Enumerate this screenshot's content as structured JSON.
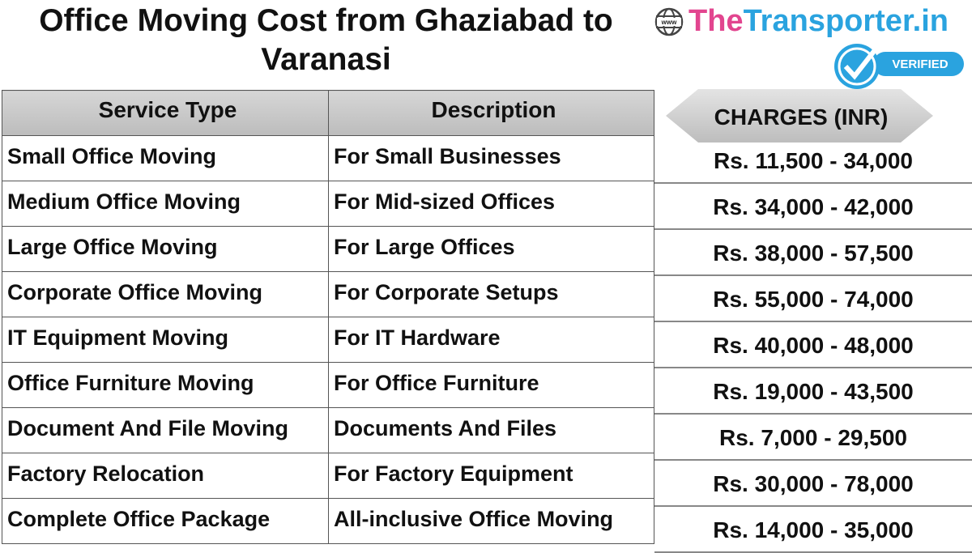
{
  "title": "Office Moving Cost from Ghaziabad to Varanasi",
  "logo": {
    "globe": "www",
    "brand_prefix": "The",
    "brand_suffix": "Transporter.in",
    "badge": "VERIFIED"
  },
  "table": {
    "headers": [
      "Service Type",
      "Description"
    ],
    "rows": [
      [
        "Small Office Moving",
        "For Small Businesses"
      ],
      [
        "Medium Office Moving",
        "For Mid-sized Offices"
      ],
      [
        "Large Office Moving",
        "For Large Offices"
      ],
      [
        "Corporate Office Moving",
        "For Corporate Setups"
      ],
      [
        "IT Equipment Moving",
        "For IT Hardware"
      ],
      [
        "Office Furniture Moving",
        "For Office Furniture"
      ],
      [
        "Document And File Moving",
        "Documents And Files"
      ],
      [
        "Factory Relocation",
        "For Factory Equipment"
      ],
      [
        "Complete Office Package",
        "All-inclusive Office Moving"
      ]
    ]
  },
  "charges": {
    "header": "CHARGES (INR)",
    "values": [
      "Rs. 11,500 - 34,000",
      "Rs. 34,000 - 42,000",
      "Rs. 38,000 - 57,500",
      "Rs. 55,000 - 74,000",
      "Rs. 40,000 - 48,000",
      "Rs. 19,000 - 43,500",
      "Rs. 7,000 - 29,500",
      "Rs. 30,000 - 78,000",
      "Rs. 14,000 - 35,000"
    ]
  }
}
